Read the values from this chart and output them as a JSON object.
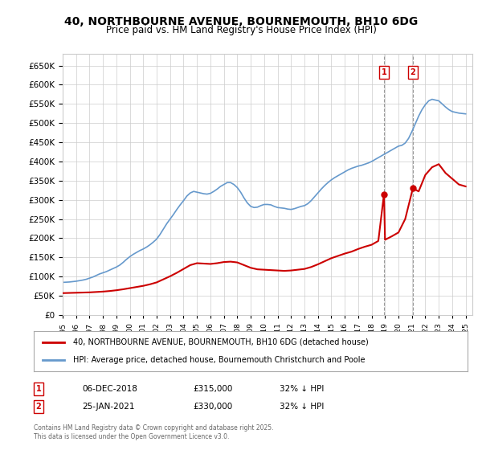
{
  "title": "40, NORTHBOURNE AVENUE, BOURNEMOUTH, BH10 6DG",
  "subtitle": "Price paid vs. HM Land Registry's House Price Index (HPI)",
  "ylabel_values": [
    0,
    50000,
    100000,
    150000,
    200000,
    250000,
    300000,
    350000,
    400000,
    450000,
    500000,
    550000,
    600000,
    650000
  ],
  "xlim_start": 1995,
  "xlim_end": 2025.5,
  "ylim": [
    0,
    680000
  ],
  "legend_label_red": "40, NORTHBOURNE AVENUE, BOURNEMOUTH, BH10 6DG (detached house)",
  "legend_label_blue": "HPI: Average price, detached house, Bournemouth Christchurch and Poole",
  "purchase_1_label": "1",
  "purchase_1_date": "06-DEC-2018",
  "purchase_1_price": "£315,000",
  "purchase_1_hpi": "32% ↓ HPI",
  "purchase_1_year": 2018.92,
  "purchase_1_value": 315000,
  "purchase_2_label": "2",
  "purchase_2_date": "25-JAN-2021",
  "purchase_2_price": "£330,000",
  "purchase_2_hpi": "32% ↓ HPI",
  "purchase_2_year": 2021.07,
  "purchase_2_value": 330000,
  "red_color": "#cc0000",
  "blue_color": "#6699cc",
  "grid_color": "#cccccc",
  "bg_color": "#ffffff",
  "footer_text": "Contains HM Land Registry data © Crown copyright and database right 2025.\nThis data is licensed under the Open Government Licence v3.0.",
  "hpi_years": [
    1995.0,
    1995.25,
    1995.5,
    1995.75,
    1996.0,
    1996.25,
    1996.5,
    1996.75,
    1997.0,
    1997.25,
    1997.5,
    1997.75,
    1998.0,
    1998.25,
    1998.5,
    1998.75,
    1999.0,
    1999.25,
    1999.5,
    1999.75,
    2000.0,
    2000.25,
    2000.5,
    2000.75,
    2001.0,
    2001.25,
    2001.5,
    2001.75,
    2002.0,
    2002.25,
    2002.5,
    2002.75,
    2003.0,
    2003.25,
    2003.5,
    2003.75,
    2004.0,
    2004.25,
    2004.5,
    2004.75,
    2005.0,
    2005.25,
    2005.5,
    2005.75,
    2006.0,
    2006.25,
    2006.5,
    2006.75,
    2007.0,
    2007.25,
    2007.5,
    2007.75,
    2008.0,
    2008.25,
    2008.5,
    2008.75,
    2009.0,
    2009.25,
    2009.5,
    2009.75,
    2010.0,
    2010.25,
    2010.5,
    2010.75,
    2011.0,
    2011.25,
    2011.5,
    2011.75,
    2012.0,
    2012.25,
    2012.5,
    2012.75,
    2013.0,
    2013.25,
    2013.5,
    2013.75,
    2014.0,
    2014.25,
    2014.5,
    2014.75,
    2015.0,
    2015.25,
    2015.5,
    2015.75,
    2016.0,
    2016.25,
    2016.5,
    2016.75,
    2017.0,
    2017.25,
    2017.5,
    2017.75,
    2018.0,
    2018.25,
    2018.5,
    2018.75,
    2019.0,
    2019.25,
    2019.5,
    2019.75,
    2020.0,
    2020.25,
    2020.5,
    2020.75,
    2021.0,
    2021.25,
    2021.5,
    2021.75,
    2022.0,
    2022.25,
    2022.5,
    2022.75,
    2023.0,
    2023.25,
    2023.5,
    2023.75,
    2024.0,
    2024.25,
    2024.5,
    2024.75,
    2025.0
  ],
  "hpi_values": [
    85000,
    85500,
    86000,
    87000,
    88000,
    89500,
    91000,
    93000,
    96000,
    99000,
    103000,
    107000,
    110000,
    113000,
    117000,
    121000,
    125000,
    130000,
    137000,
    145000,
    152000,
    158000,
    163000,
    168000,
    172000,
    177000,
    183000,
    190000,
    198000,
    210000,
    224000,
    238000,
    250000,
    262000,
    275000,
    287000,
    298000,
    310000,
    318000,
    322000,
    320000,
    318000,
    316000,
    315000,
    317000,
    322000,
    328000,
    335000,
    340000,
    345000,
    345000,
    340000,
    332000,
    320000,
    305000,
    292000,
    283000,
    280000,
    281000,
    285000,
    288000,
    288000,
    287000,
    283000,
    280000,
    279000,
    278000,
    276000,
    275000,
    277000,
    280000,
    283000,
    285000,
    290000,
    298000,
    308000,
    318000,
    328000,
    337000,
    345000,
    352000,
    358000,
    363000,
    368000,
    373000,
    378000,
    382000,
    385000,
    388000,
    390000,
    393000,
    396000,
    400000,
    405000,
    410000,
    415000,
    420000,
    425000,
    430000,
    435000,
    440000,
    442000,
    448000,
    460000,
    478000,
    498000,
    518000,
    535000,
    548000,
    558000,
    562000,
    560000,
    558000,
    550000,
    542000,
    535000,
    530000,
    528000,
    526000,
    525000,
    524000
  ],
  "red_years": [
    1995.0,
    1995.5,
    1996.0,
    1996.5,
    1997.0,
    1997.5,
    1998.0,
    1998.5,
    1999.0,
    1999.5,
    2000.0,
    2000.5,
    2001.0,
    2001.5,
    2002.0,
    2002.5,
    2003.0,
    2003.5,
    2004.0,
    2004.5,
    2005.0,
    2005.5,
    2006.0,
    2006.5,
    2007.0,
    2007.5,
    2008.0,
    2008.5,
    2009.0,
    2009.5,
    2010.0,
    2010.5,
    2011.0,
    2011.5,
    2012.0,
    2012.5,
    2013.0,
    2013.5,
    2014.0,
    2014.5,
    2015.0,
    2015.5,
    2016.0,
    2016.5,
    2017.0,
    2017.5,
    2018.0,
    2018.5,
    2018.92,
    2019.0,
    2019.5,
    2020.0,
    2020.5,
    2021.07,
    2021.5,
    2022.0,
    2022.5,
    2023.0,
    2023.5,
    2024.0,
    2024.5,
    2025.0
  ],
  "red_values": [
    57000,
    57500,
    58000,
    58500,
    59000,
    60000,
    61000,
    62500,
    64500,
    67000,
    70000,
    73000,
    76000,
    80000,
    85000,
    93000,
    101000,
    110000,
    120000,
    130000,
    135000,
    134000,
    133000,
    135000,
    138000,
    139000,
    137000,
    130000,
    123000,
    119000,
    118000,
    117000,
    116000,
    115000,
    116000,
    118000,
    120000,
    125000,
    132000,
    140000,
    148000,
    154000,
    160000,
    165000,
    172000,
    178000,
    183000,
    193000,
    315000,
    196000,
    205000,
    215000,
    250000,
    330000,
    322000,
    365000,
    385000,
    393000,
    370000,
    355000,
    340000,
    335000
  ]
}
